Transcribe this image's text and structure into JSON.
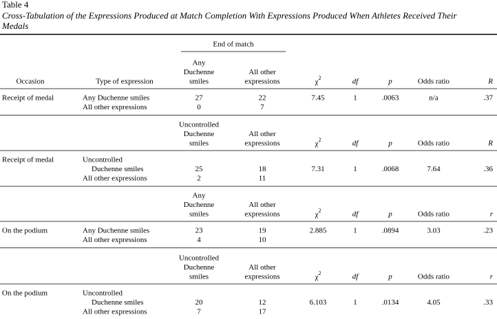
{
  "table_label": "Table 4",
  "title_lines": [
    "Cross-Tabulation of the Expressions Produced at Match Completion With Expressions Produced When Athletes Received Their",
    "Medals"
  ],
  "header": {
    "occasion": "Occasion",
    "type_of_expression": "Type of expression",
    "spanner": "End of match"
  },
  "blocks": [
    {
      "heads": {
        "col1": [
          "Any",
          "Duchenne",
          "smiles"
        ],
        "col2": [
          "All other",
          "expressions"
        ],
        "chi": {
          "symbol": "χ",
          "sup": "2"
        },
        "df": "df",
        "p": "p",
        "odds": "Odds ratio",
        "r": "R"
      },
      "occasion": "Receipt of medal",
      "rows": [
        {
          "type": [
            "Any Duchenne smiles"
          ],
          "col1": 27,
          "col2": 22
        },
        {
          "type": [
            "All other expressions"
          ],
          "col1": 0,
          "col2": 7
        }
      ],
      "stats": {
        "chi": 7.45,
        "df": 1,
        "p": ".0063",
        "odds": "n/a",
        "r": ".37"
      }
    },
    {
      "heads": {
        "col1": [
          "Uncontrolled",
          "Duchenne",
          "smiles"
        ],
        "col2": [
          "All other",
          "expressions"
        ],
        "chi": {
          "symbol": "χ",
          "sup": "2"
        },
        "df": "df",
        "p": "p",
        "odds": "Odds ratio",
        "r": "R"
      },
      "occasion": "Receipt of medal",
      "rows": [
        {
          "type": [
            "Uncontrolled",
            "Duchenne smiles"
          ],
          "col1": 25,
          "col2": 18
        },
        {
          "type": [
            "All other expressions"
          ],
          "col1": 2,
          "col2": 11
        }
      ],
      "stats": {
        "chi": 7.31,
        "df": 1,
        "p": ".0068",
        "odds": 7.64,
        "r": ".36"
      }
    },
    {
      "heads": {
        "col1": [
          "Any",
          "Duchenne",
          "smiles"
        ],
        "col2": [
          "All other",
          "expressions"
        ],
        "chi": {
          "symbol": "χ",
          "sup": "2"
        },
        "df": "df",
        "p": "p",
        "odds": "Odds ratio",
        "r": "r"
      },
      "occasion": "On the podium",
      "rows": [
        {
          "type": [
            "Any Duchenne smiles"
          ],
          "col1": 23,
          "col2": 19
        },
        {
          "type": [
            "All other expressions"
          ],
          "col1": 4,
          "col2": 10
        }
      ],
      "stats": {
        "chi": 2.885,
        "df": 1,
        "p": ".0894",
        "odds": 3.03,
        "r": ".23"
      }
    },
    {
      "heads": {
        "col1": [
          "Uncontrolled",
          "Duchenne",
          "smiles"
        ],
        "col2": [
          "All other",
          "expressions"
        ],
        "chi": {
          "symbol": "χ",
          "sup": "2"
        },
        "df": "df",
        "p": "p",
        "odds": "Odds ratio",
        "r": "r"
      },
      "occasion": "On the podium",
      "rows": [
        {
          "type": [
            "Uncontrolled",
            "Duchenne smiles"
          ],
          "col1": 20,
          "col2": 12
        },
        {
          "type": [
            "All other expressions"
          ],
          "col1": 7,
          "col2": 17
        }
      ],
      "stats": {
        "chi": 6.103,
        "df": 1,
        "p": ".0134",
        "odds": 4.05,
        "r": ".33"
      }
    }
  ]
}
